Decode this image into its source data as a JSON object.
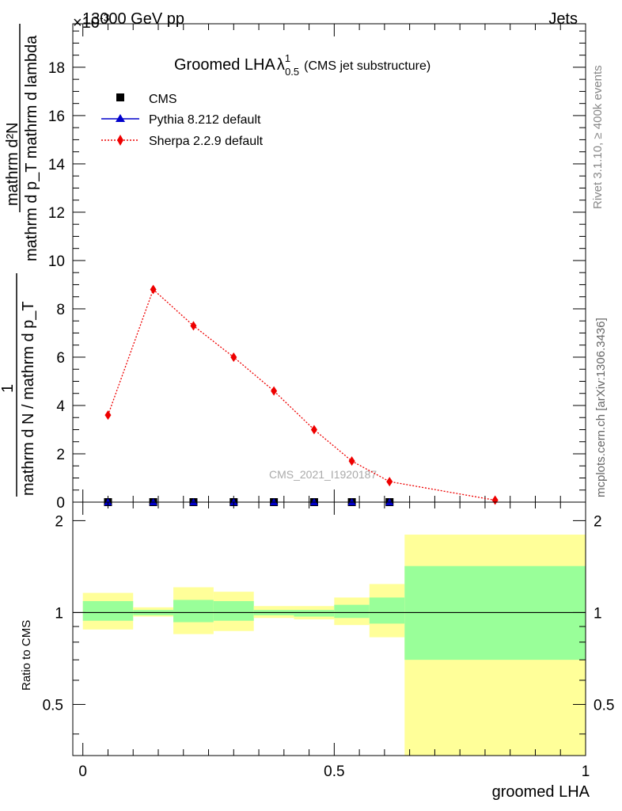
{
  "header": {
    "left": "13000 GeV pp",
    "right": "Jets",
    "exponent": "×10",
    "exponent_power": "-3"
  },
  "side_labels": {
    "rivet": "Rivet 3.1.10, ≥ 400k events",
    "mcplots": "mcplots.cern.ch [arXiv:1306.3436]"
  },
  "chart_data": [
    {
      "type": "line",
      "title": "Groomed LHA",
      "title_symbol": "λ",
      "title_sup": "1",
      "title_sub": "0.5",
      "title_suffix": "(CMS jet substructure)",
      "watermark": "CMS_2021_I1920187",
      "ylabel": {
        "numerator": "mathrm d²N",
        "denominator": "mathrm d p_T mathrm d lambda",
        "front": "1",
        "front_denominator": "mathrm d N / mathrm d p_T"
      },
      "y_scale_note": "×10⁻³",
      "ylim": [
        0,
        19.8
      ],
      "xlim": [
        -0.02,
        1.0
      ],
      "yticks": [
        0,
        2,
        4,
        6,
        8,
        10,
        12,
        14,
        16,
        18
      ],
      "ytick_labels": [
        "0",
        "2",
        "4",
        "6",
        "8",
        "10",
        "12",
        "14",
        "16",
        "18"
      ],
      "legend_position": "top-left",
      "series": [
        {
          "name": "CMS",
          "marker": "square",
          "color": "#000000",
          "x": [
            0.05,
            0.14,
            0.22,
            0.3,
            0.38,
            0.46,
            0.535,
            0.61
          ],
          "values": [
            0,
            0,
            0,
            0,
            0,
            0,
            0,
            0
          ]
        },
        {
          "name": "Pythia 8.212 default",
          "marker": "triangle",
          "color": "#0000cc",
          "x": [
            0.05,
            0.14,
            0.22,
            0.3,
            0.38,
            0.46,
            0.535,
            0.61
          ],
          "values": [
            0,
            0,
            0,
            0,
            0,
            0,
            0,
            0
          ]
        },
        {
          "name": "Sherpa 2.2.9 default",
          "marker": "diamond",
          "color": "#ee0000",
          "x": [
            0.05,
            0.14,
            0.22,
            0.3,
            0.38,
            0.46,
            0.535,
            0.61,
            0.82
          ],
          "values": [
            3.6,
            8.8,
            7.3,
            6.0,
            4.6,
            3.0,
            1.7,
            0.85,
            0.08
          ]
        }
      ]
    },
    {
      "type": "area",
      "ylabel": "Ratio to CMS",
      "xlabel": "groomed LHA",
      "ylim": [
        0.34,
        2.3
      ],
      "xlim": [
        -0.02,
        1.0
      ],
      "yticks": [
        0.5,
        1,
        2
      ],
      "ytick_labels": [
        "0.5",
        "1",
        "2"
      ],
      "xticks": [
        0,
        0.5,
        1
      ],
      "xtick_labels": [
        "0",
        "0.5",
        "1"
      ],
      "reference_line": 1,
      "bands": [
        {
          "x0": 0.0,
          "x1": 0.1,
          "inner": [
            0.94,
            1.09
          ],
          "outer": [
            0.88,
            1.16
          ]
        },
        {
          "x0": 0.1,
          "x1": 0.18,
          "inner": [
            0.98,
            1.02
          ],
          "outer": [
            0.97,
            1.04
          ]
        },
        {
          "x0": 0.18,
          "x1": 0.26,
          "inner": [
            0.93,
            1.1
          ],
          "outer": [
            0.85,
            1.21
          ]
        },
        {
          "x0": 0.26,
          "x1": 0.34,
          "inner": [
            0.94,
            1.09
          ],
          "outer": [
            0.87,
            1.17
          ]
        },
        {
          "x0": 0.34,
          "x1": 0.42,
          "inner": [
            0.98,
            1.02
          ],
          "outer": [
            0.96,
            1.05
          ]
        },
        {
          "x0": 0.42,
          "x1": 0.5,
          "inner": [
            0.97,
            1.02
          ],
          "outer": [
            0.95,
            1.05
          ]
        },
        {
          "x0": 0.5,
          "x1": 0.57,
          "inner": [
            0.96,
            1.06
          ],
          "outer": [
            0.91,
            1.12
          ]
        },
        {
          "x0": 0.57,
          "x1": 0.64,
          "inner": [
            0.92,
            1.12
          ],
          "outer": [
            0.83,
            1.24
          ]
        },
        {
          "x0": 0.64,
          "x1": 1.0,
          "inner": [
            0.7,
            1.42
          ],
          "outer": [
            0.34,
            1.8
          ]
        }
      ],
      "colors": {
        "inner": "#99ff99",
        "outer": "#ffff99"
      }
    }
  ]
}
